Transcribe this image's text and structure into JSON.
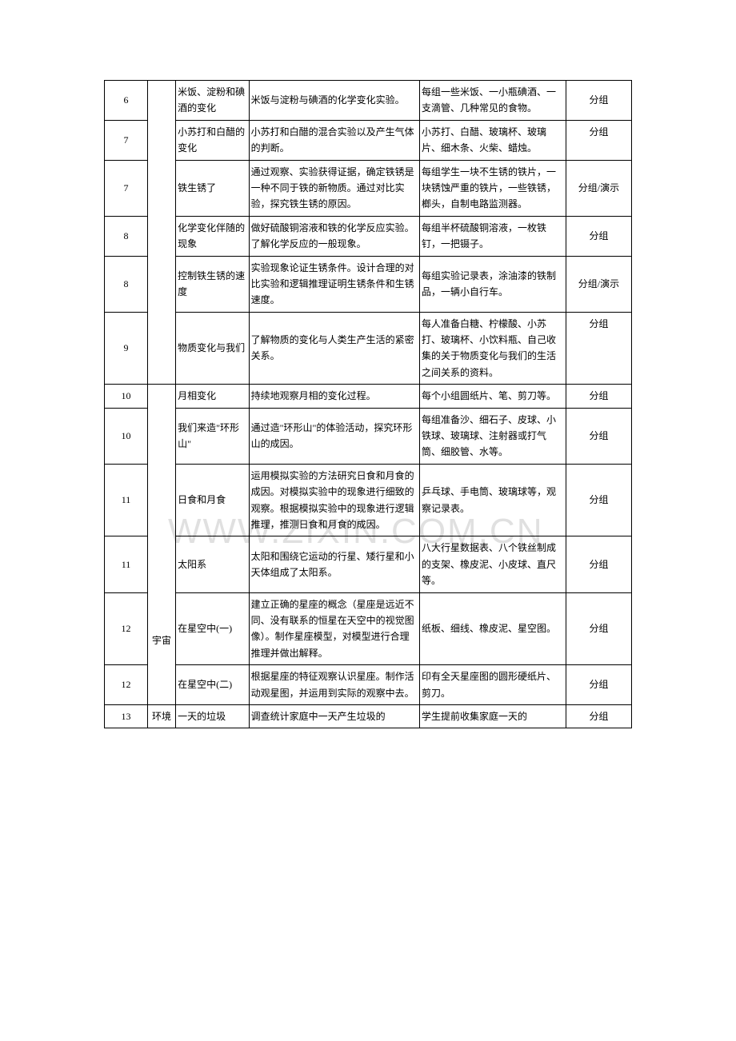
{
  "watermark": "WWW.ZIXIN.COM.CN",
  "rows": [
    {
      "week": "6",
      "unit": "",
      "topic": "米饭、淀粉和碘酒的变化",
      "content": "米饭与淀粉与碘酒的化学变化实验。",
      "materials": "每组一些米饭、一小瓶碘酒、一支滴管、几种常见的食物。",
      "type": "分组"
    },
    {
      "week": "7",
      "unit": "",
      "topic": "小苏打和白醋的变化",
      "content": "小苏打和白醋的混合实验以及产生气体的判断。",
      "materials": "小苏打、白醋、玻璃杯、玻璃片、细木条、火柴、蜡烛。",
      "type": "分组"
    },
    {
      "week": "7",
      "unit": "",
      "topic": "铁生锈了",
      "content": "通过观察、实验获得证据，确定铁锈是一种不同于铁的新物质。通过对比实验，探究铁生锈的原因。",
      "materials": "每组学生一块不生锈的铁片，一块锈蚀严重的铁片，一些铁锈，榔头，自制电路监测器。",
      "type": "分组/演示"
    },
    {
      "week": "8",
      "unit": "",
      "topic": "化学变化伴随的现象",
      "content": "做好硫酸铜溶液和铁的化学反应实验。了解化学反应的一般现象。",
      "materials": "每组半杯硫酸铜溶液，一枚铁钉，一把镊子。",
      "type": "分组"
    },
    {
      "week": "8",
      "unit": "",
      "topic": "控制铁生锈的速度",
      "content": "实验现象论证生锈条件。设计合理的对比实验和逻辑推理证明生锈条件和生锈速度。",
      "materials": "每组实验记录表，涂油漆的铁制品，一辆小自行车。",
      "type": "分组/演示"
    },
    {
      "week": "9",
      "unit": "",
      "topic": "物质变化与我们",
      "content": "了解物质的变化与人类生产生活的紧密关系。",
      "materials": "每人准备白糖、柠檬酸、小苏打、玻璃杯、小饮料瓶、自己收集的关于物质变化与我们的生活之间关系的资料。",
      "type": "分组"
    },
    {
      "week": "10",
      "unit": "宇宙",
      "unitRowspan": 6,
      "topic": "月相变化",
      "content": "持续地观察月相的变化过程。",
      "materials": "每个小组圆纸片、笔、剪刀等。",
      "type": "分组"
    },
    {
      "week": "10",
      "unit": "",
      "topic": "我们来造\"环形山\"",
      "content": "通过造\"环形山\"的体验活动，探究环形山的成因。",
      "materials": "每组准备沙、细石子、皮球、小铁球、玻璃球、注射器或打气筒、细胶管、水等。",
      "type": "分组"
    },
    {
      "week": "11",
      "unit": "",
      "topic": "日食和月食",
      "content": "运用模拟实验的方法研究日食和月食的成因。对模拟实验中的现象进行细致的观察。根据模拟实验中的现象进行逻辑推理，推测日食和月食的成因。",
      "materials": "乒乓球、手电筒、玻璃球等，观察记录表。",
      "type": "分组"
    },
    {
      "week": "11",
      "unit": "",
      "topic": "太阳系",
      "content": "太阳和围绕它运动的行星、矮行星和小天体组成了太阳系。",
      "materials": "八大行星数据表、八个铁丝制成的支架、橡皮泥、小皮球、直尺等。",
      "type": "分组"
    },
    {
      "week": "12",
      "unit": "",
      "topic": "在星空中(一)",
      "content": "建立正确的星座的概念（星座是远近不同、没有联系的恒星在天空中的视觉图像）。制作星座模型，对模型进行合理推理并做出解释。",
      "materials": "纸板、细线、橡皮泥、星空图。",
      "type": "分组"
    },
    {
      "week": "12",
      "unit": "",
      "topic": "在星空中(二)",
      "content": "根据星座的特征观察认识星座。制作活动观星图，并运用到实际的观察中去。",
      "materials": "印有全天星座图的圆形硬纸片、剪刀。",
      "type": "分组"
    },
    {
      "week": "13",
      "unit": "环境",
      "topic": "一天的垃圾",
      "content": "调查统计家庭中一天产生垃圾的",
      "materials": "学生提前收集家庭一天的",
      "type": "分组"
    }
  ]
}
